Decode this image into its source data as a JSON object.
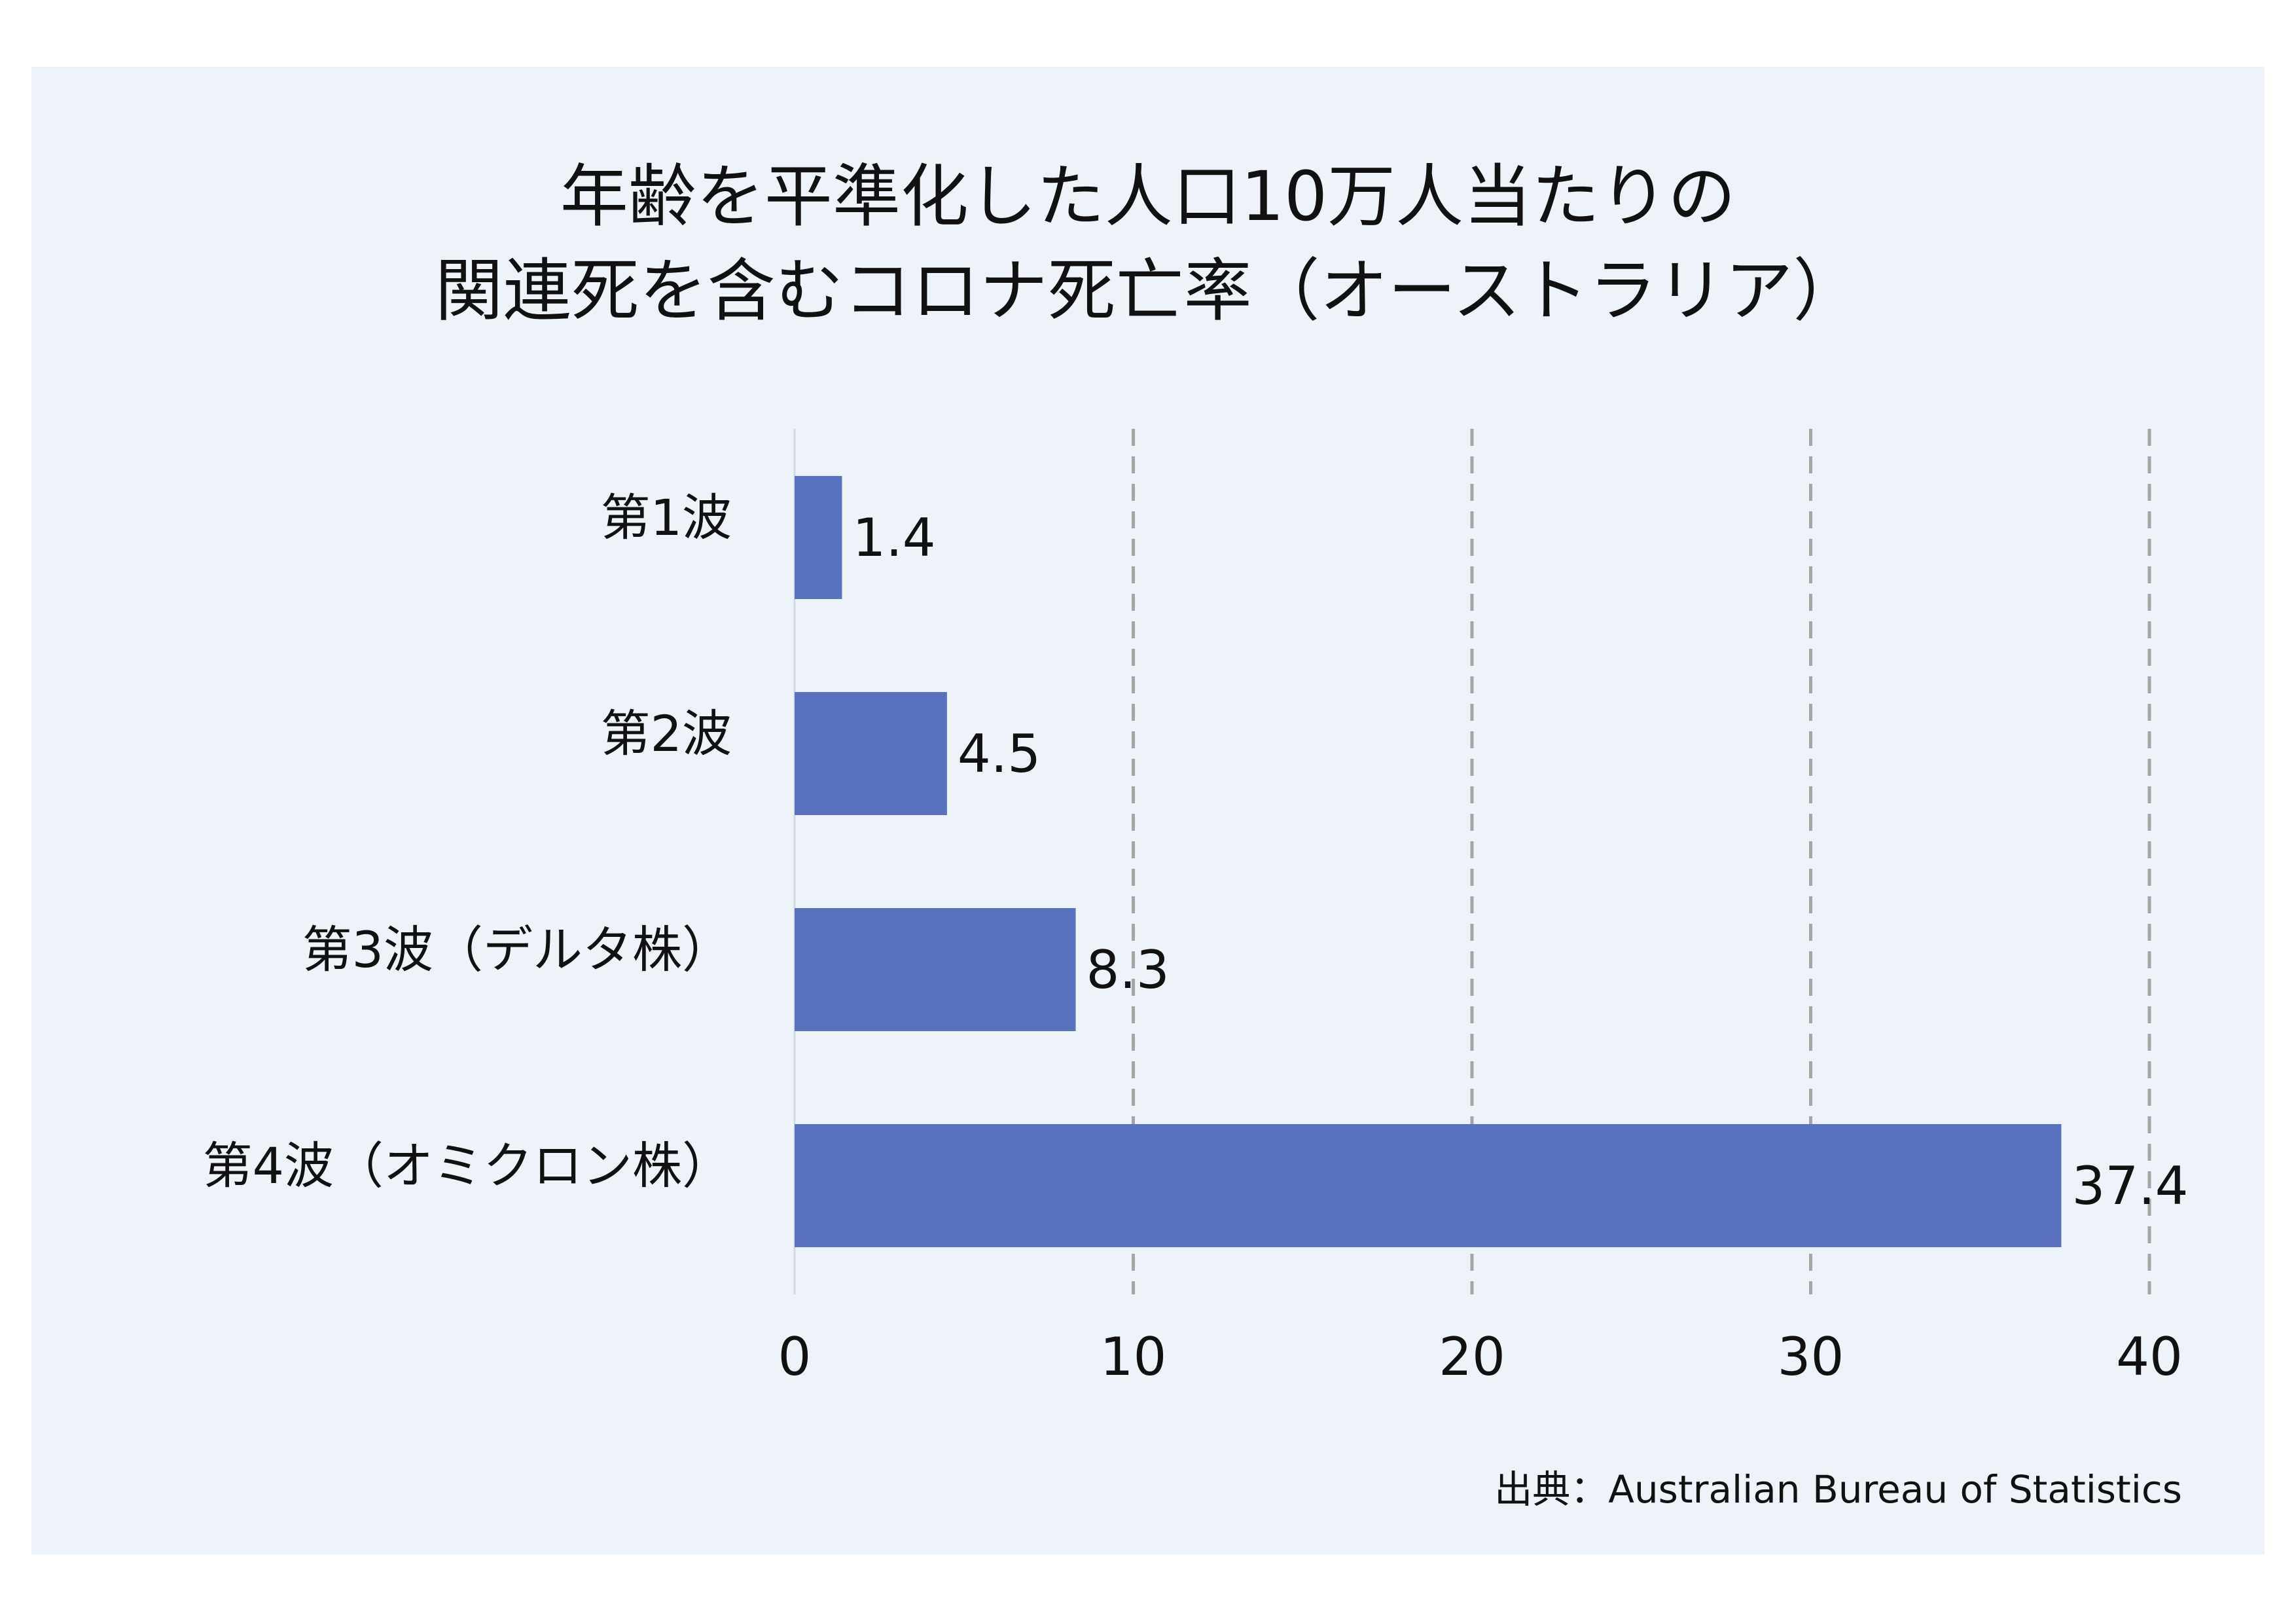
{
  "chart_data": {
    "type": "bar",
    "orientation": "horizontal",
    "title": [
      "年齢を平準化した人口10万人当たりの",
      "関連死を含むコロナ死亡率（オーストラリア）"
    ],
    "categories": [
      "第1波",
      "第2波",
      "第3波（デルタ株）",
      "第4波（オミクロン株）"
    ],
    "values": [
      1.4,
      4.5,
      8.3,
      37.4
    ],
    "value_labels": [
      "1.4",
      "4.5",
      "8.3",
      "37.4"
    ],
    "x_ticks": [
      "0",
      "10",
      "20",
      "30",
      "40"
    ],
    "xlim": [
      0,
      40
    ],
    "grid": "vertical dashed",
    "bar_color": "#5872c0",
    "background_color": "#eef3fa"
  },
  "source": "出典：Australian Bureau of Statistics"
}
